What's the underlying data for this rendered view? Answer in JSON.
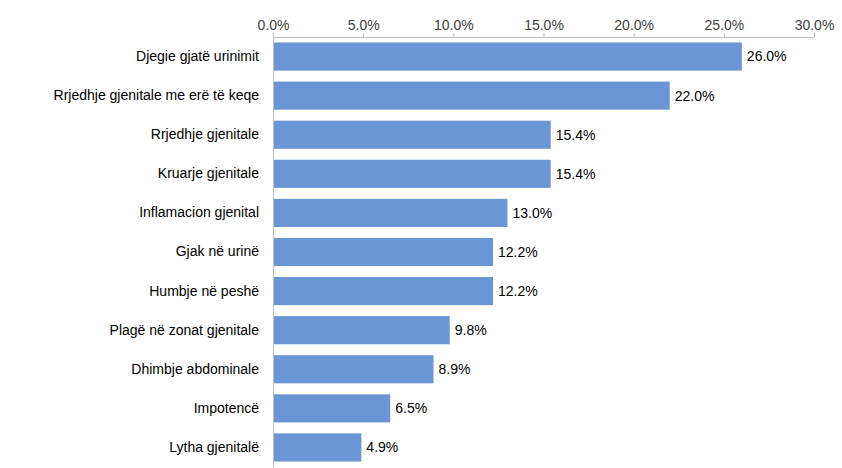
{
  "chart_data": {
    "type": "bar",
    "orientation": "horizontal",
    "categories": [
      "Djegie gjatë urinimit",
      "Rrjedhje gjenitale me erë të keqe",
      "Rrjedhje gjenitale",
      "Kruarje gjenitale",
      "Inflamacion gjenital",
      "Gjak në urinë",
      "Humbje në peshë",
      "Plagë në zonat gjenitale",
      "Dhimbje abdominale",
      "Impotencë",
      "Lytha gjenitalë"
    ],
    "values": [
      26.0,
      22.0,
      15.4,
      15.4,
      13.0,
      12.2,
      12.2,
      9.8,
      8.9,
      6.5,
      4.9
    ],
    "value_labels": [
      "26.0%",
      "22.0%",
      "15.4%",
      "15.4%",
      "13.0%",
      "12.2%",
      "12.2%",
      "9.8%",
      "8.9%",
      "6.5%",
      "4.9%"
    ],
    "color": "#6b96d5",
    "xlim": [
      0,
      30
    ],
    "xticks": [
      {
        "value": 0,
        "label": "0.0%"
      },
      {
        "value": 5,
        "label": "5.0%"
      },
      {
        "value": 10,
        "label": "10.0%"
      },
      {
        "value": 15,
        "label": "15.0%"
      },
      {
        "value": 20,
        "label": "20.0%"
      },
      {
        "value": 25,
        "label": "25.0%"
      },
      {
        "value": 30,
        "label": "30.0%"
      }
    ],
    "grid": false,
    "data_labels": true
  }
}
